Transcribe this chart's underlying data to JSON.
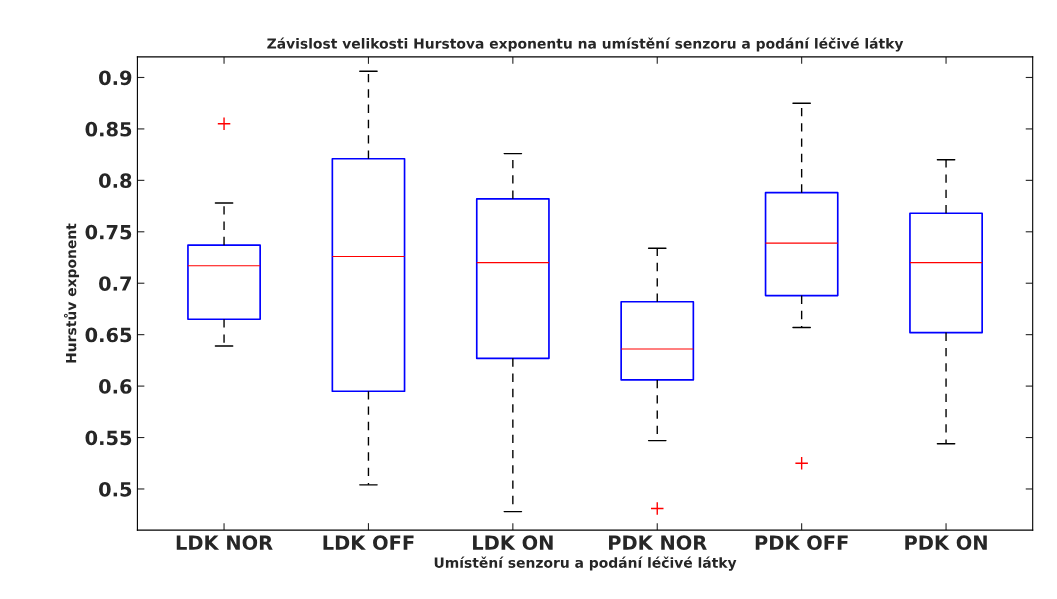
{
  "chart_data": {
    "type": "box",
    "title": "Závislost velikosti Hurstova exponentu na umístění senzoru a podání léčivé látky",
    "xlabel": "Umístění senzoru a podání léčivé látky",
    "ylabel": "Hurstův exponent",
    "categories": [
      "LDK NOR",
      "LDK OFF",
      "LDK ON",
      "PDK NOR",
      "PDK OFF",
      "PDK ON"
    ],
    "series": [
      {
        "color": "#0000ff",
        "boxes": [
          {
            "low": 0.639,
            "q1": 0.665,
            "median": 0.717,
            "q3": 0.737,
            "high": 0.778,
            "outliers": [
              0.855
            ]
          },
          {
            "low": 0.504,
            "q1": 0.595,
            "median": 0.726,
            "q3": 0.821,
            "high": 0.906
          },
          {
            "low": 0.478,
            "q1": 0.627,
            "median": 0.72,
            "q3": 0.782,
            "high": 0.826
          },
          {
            "low": 0.547,
            "q1": 0.606,
            "median": 0.636,
            "q3": 0.682,
            "high": 0.734,
            "outliers": [
              0.481
            ]
          },
          {
            "low": 0.657,
            "q1": 0.688,
            "median": 0.739,
            "q3": 0.788,
            "high": 0.875,
            "outliers": [
              0.525
            ]
          },
          {
            "low": 0.544,
            "q1": 0.652,
            "median": 0.72,
            "q3": 0.768,
            "high": 0.82
          }
        ]
      }
    ],
    "ylim": [
      0.46,
      0.92
    ],
    "yticks": [
      0.5,
      0.55,
      0.6,
      0.65,
      0.7,
      0.75,
      0.8,
      0.85,
      0.9
    ],
    "grid": false
  }
}
